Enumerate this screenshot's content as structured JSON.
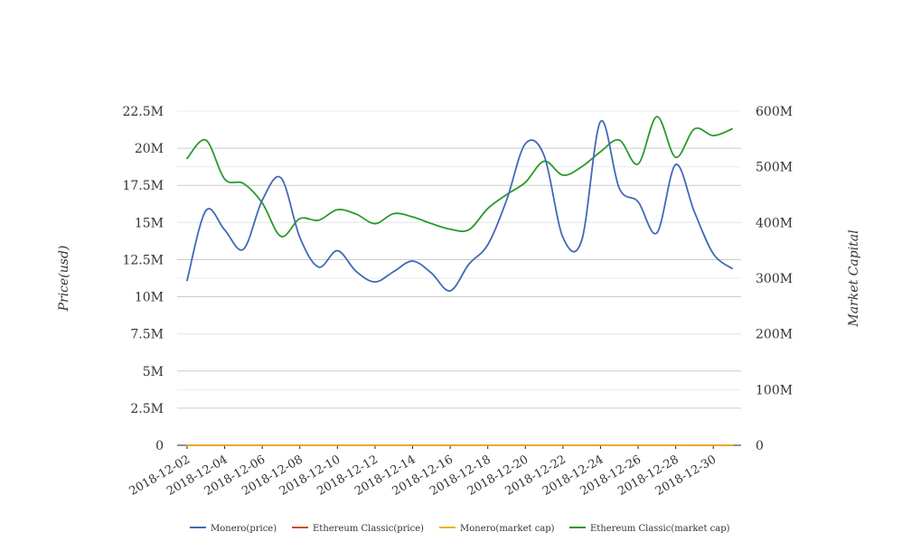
{
  "chart_data": {
    "type": "line",
    "title": "",
    "xlabel": "",
    "ylabel": "Price(usd)",
    "y2label": "Market Capital",
    "ylim": [
      0,
      22500000
    ],
    "y2lim": [
      0,
      600000000
    ],
    "y_ticks": [
      {
        "value": 0,
        "label": "0"
      },
      {
        "value": 2500000,
        "label": "2.5M"
      },
      {
        "value": 5000000,
        "label": "5M"
      },
      {
        "value": 7500000,
        "label": "7.5M"
      },
      {
        "value": 10000000,
        "label": "10M"
      },
      {
        "value": 12500000,
        "label": "12.5M"
      },
      {
        "value": 15000000,
        "label": "15M"
      },
      {
        "value": 17500000,
        "label": "17.5M"
      },
      {
        "value": 20000000,
        "label": "20M"
      },
      {
        "value": 22500000,
        "label": "22.5M"
      }
    ],
    "y2_ticks": [
      {
        "value": 0,
        "label": "0"
      },
      {
        "value": 100000000,
        "label": "100M"
      },
      {
        "value": 200000000,
        "label": "200M"
      },
      {
        "value": 300000000,
        "label": "300M"
      },
      {
        "value": 400000000,
        "label": "400M"
      },
      {
        "value": 500000000,
        "label": "500M"
      },
      {
        "value": 600000000,
        "label": "600M"
      }
    ],
    "x_tick_labels": [
      "2018-12-02",
      "2018-12-04",
      "2018-12-06",
      "2018-12-08",
      "2018-12-10",
      "2018-12-12",
      "2018-12-14",
      "2018-12-16",
      "2018-12-18",
      "2018-12-20",
      "2018-12-22",
      "2018-12-24",
      "2018-12-26",
      "2018-12-28",
      "2018-12-30"
    ],
    "x": [
      "2018-12-02",
      "2018-12-03",
      "2018-12-04",
      "2018-12-05",
      "2018-12-06",
      "2018-12-07",
      "2018-12-08",
      "2018-12-09",
      "2018-12-10",
      "2018-12-11",
      "2018-12-12",
      "2018-12-13",
      "2018-12-14",
      "2018-12-15",
      "2018-12-16",
      "2018-12-17",
      "2018-12-18",
      "2018-12-19",
      "2018-12-20",
      "2018-12-21",
      "2018-12-22",
      "2018-12-23",
      "2018-12-24",
      "2018-12-25",
      "2018-12-26",
      "2018-12-27",
      "2018-12-28",
      "2018-12-29",
      "2018-12-30",
      "2018-12-31"
    ],
    "series": [
      {
        "name": "Monero(price)",
        "axis": "left",
        "color": "#4169b8",
        "values": [
          11100000,
          15800000,
          14500000,
          13200000,
          16500000,
          18000000,
          14000000,
          12000000,
          13100000,
          11700000,
          11000000,
          11700000,
          12400000,
          11600000,
          10400000,
          12200000,
          13500000,
          16500000,
          20300000,
          19500000,
          14000000,
          13800000,
          21800000,
          17300000,
          16400000,
          14300000,
          18900000,
          15700000,
          12900000,
          11900000
        ]
      },
      {
        "name": "Ethereum Classic(price)",
        "axis": "left",
        "color": "#c8502a",
        "values": [
          0,
          0,
          0,
          0,
          0,
          0,
          0,
          0,
          0,
          0,
          0,
          0,
          0,
          0,
          0,
          0,
          0,
          0,
          0,
          0,
          0,
          0,
          0,
          0,
          0,
          0,
          0,
          0,
          0,
          0
        ]
      },
      {
        "name": "Monero(market cap)",
        "axis": "right",
        "color": "#f0b020",
        "values": [
          0,
          0,
          0,
          0,
          0,
          0,
          0,
          0,
          0,
          0,
          0,
          0,
          0,
          0,
          0,
          0,
          0,
          0,
          0,
          0,
          0,
          0,
          0,
          0,
          0,
          0,
          0,
          0,
          0,
          0
        ]
      },
      {
        "name": "Ethereum Classic(market cap)",
        "axis": "right",
        "color": "#2a9a2a",
        "values": [
          515000000,
          548000000,
          478000000,
          470000000,
          435000000,
          375000000,
          407000000,
          404000000,
          423000000,
          415000000,
          398000000,
          416000000,
          410000000,
          398000000,
          388000000,
          387000000,
          425000000,
          450000000,
          472000000,
          510000000,
          485000000,
          500000000,
          527000000,
          548000000,
          505000000,
          590000000,
          517000000,
          568000000,
          556000000,
          568000000
        ]
      }
    ],
    "grid": true,
    "legend_position": "bottom"
  }
}
